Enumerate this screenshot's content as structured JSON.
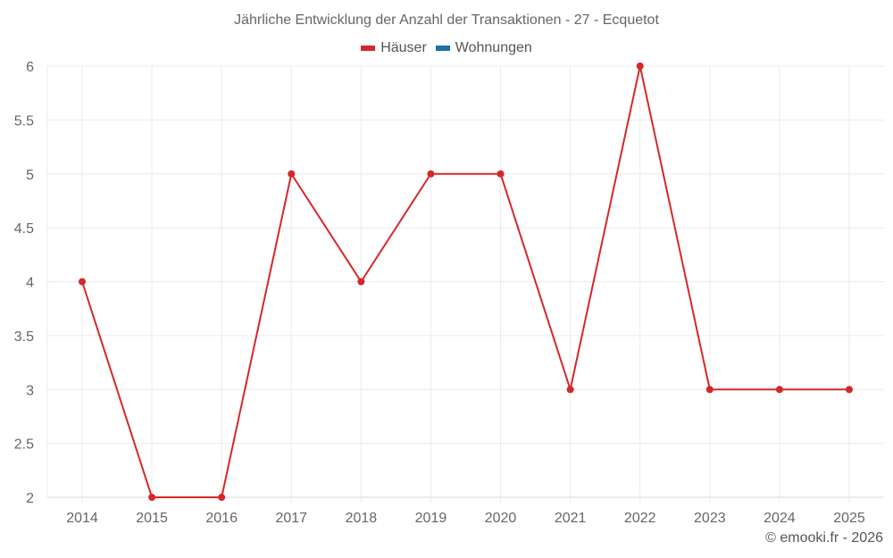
{
  "chart_data": {
    "type": "line",
    "title": "Jährliche Entwicklung der Anzahl der Transaktionen - 27 - Ecquetot",
    "xlabel": "",
    "ylabel": "",
    "categories": [
      "2014",
      "2015",
      "2016",
      "2017",
      "2018",
      "2019",
      "2020",
      "2021",
      "2022",
      "2023",
      "2024",
      "2025"
    ],
    "series": [
      {
        "name": "Häuser",
        "color": "#d62728",
        "values": [
          4,
          2,
          2,
          5,
          4,
          5,
          5,
          3,
          6,
          3,
          3,
          3
        ]
      },
      {
        "name": "Wohnungen",
        "color": "#1f6fa8",
        "values": []
      }
    ],
    "ylim": [
      2,
      6
    ],
    "yticks": [
      "2",
      "2.5",
      "3",
      "3.5",
      "4",
      "4.5",
      "5",
      "5.5",
      "6"
    ],
    "grid": true,
    "legend_position": "top-center"
  },
  "header": {
    "title": "Jährliche Entwicklung der Anzahl der Transaktionen - 27 - Ecquetot"
  },
  "legend": {
    "items": [
      {
        "label": "Häuser",
        "color": "#d62728"
      },
      {
        "label": "Wohnungen",
        "color": "#1f6fa8"
      }
    ]
  },
  "footer": {
    "credit": "© emooki.fr - 2026"
  }
}
